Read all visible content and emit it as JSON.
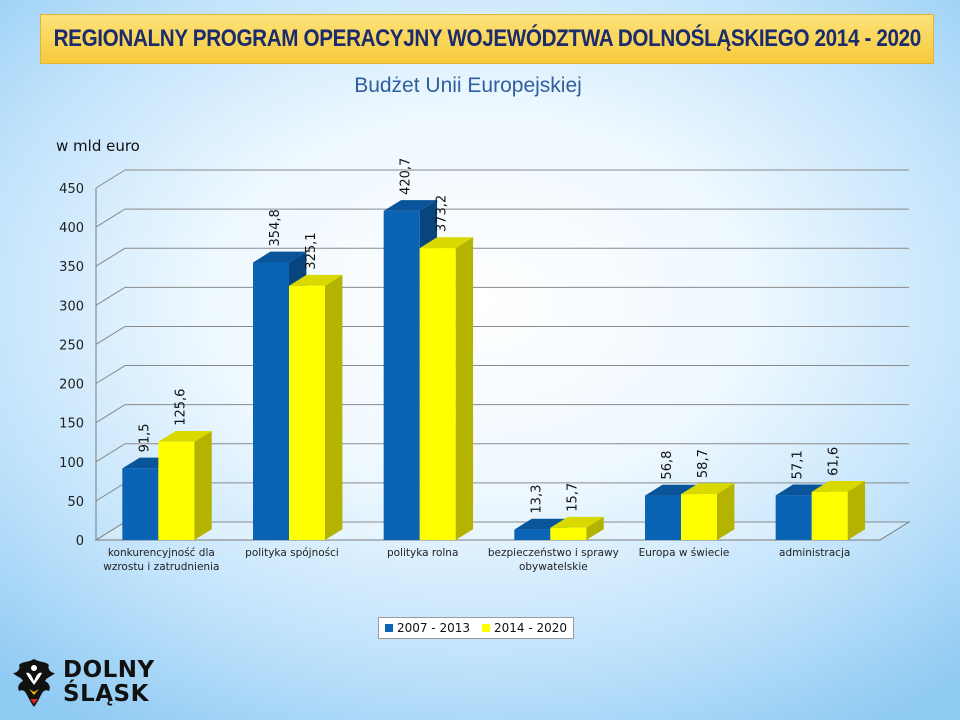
{
  "header": {
    "banner_title": "REGIONALNY PROGRAM OPERACYJNY WOJEWÓDZTWA DOLNOŚLĄSKIEGO 2014 - 2020",
    "subtitle": "Budżet Unii Europejskiej"
  },
  "colors": {
    "series_2007": "#0a63b5",
    "series_2014": "#ffff00",
    "banner": "#f6c93b",
    "title_text": "#1b2b6b",
    "subtitle_text": "#2f5f9e"
  },
  "chart_data": {
    "type": "bar",
    "unit_label": "w mld euro",
    "categories": [
      [
        "konkurencyjność dla",
        "wzrostu i zatrudnienia"
      ],
      [
        "polityka spójności"
      ],
      [
        "polityka rolna"
      ],
      [
        "bezpieczeństwo i sprawy",
        "obywatelskie"
      ],
      [
        "Europa w świecie"
      ],
      [
        "administracja"
      ]
    ],
    "series": [
      {
        "name": "2007 - 2013",
        "values": [
          91.5,
          354.8,
          420.7,
          13.3,
          56.8,
          57.1
        ],
        "labels": [
          "91,5",
          "354,8",
          "420,7",
          "13,3",
          "56,8",
          "57,1"
        ]
      },
      {
        "name": "2014 - 2020",
        "values": [
          125.6,
          325.1,
          373.2,
          15.7,
          58.7,
          61.6
        ],
        "labels": [
          "125,6",
          "325,1",
          "373,2",
          "15,7",
          "58,7",
          "61,6"
        ]
      }
    ],
    "y_ticks": [
      "0",
      "50",
      "100",
      "150",
      "200",
      "250",
      "300",
      "350",
      "400",
      "450"
    ],
    "ylim": [
      0,
      450
    ],
    "grid": true,
    "legend_position": "bottom"
  },
  "logo": {
    "line1": "DOLNY",
    "line2": "ŚLĄSK"
  }
}
